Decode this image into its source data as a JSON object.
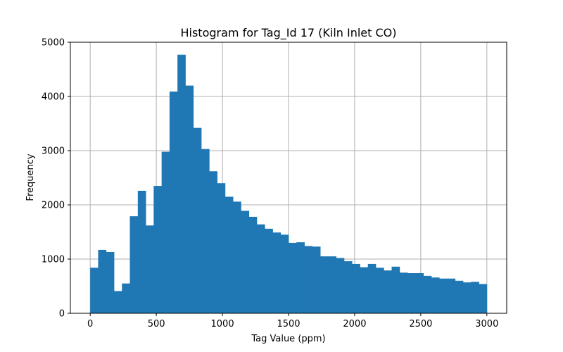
{
  "chart_data": {
    "type": "bar",
    "title": "Histogram for Tag_Id 17 (Kiln Inlet CO)",
    "xlabel": "Tag Value (ppm)",
    "ylabel": "Frequency",
    "xlim": [
      -150,
      3150
    ],
    "ylim": [
      0,
      5000
    ],
    "bin_start": 0,
    "bin_width": 60,
    "xticks": [
      0,
      500,
      1000,
      1500,
      2000,
      2500,
      3000
    ],
    "yticks": [
      0,
      1000,
      2000,
      3000,
      4000,
      5000
    ],
    "grid": true,
    "bar_color": "#1f77b4",
    "values": [
      840,
      1170,
      1130,
      410,
      550,
      1790,
      2260,
      1620,
      2350,
      2980,
      4090,
      4770,
      4200,
      3420,
      3030,
      2620,
      2400,
      2150,
      2060,
      1890,
      1780,
      1640,
      1560,
      1490,
      1450,
      1300,
      1310,
      1240,
      1230,
      1050,
      1050,
      1020,
      960,
      910,
      850,
      910,
      840,
      790,
      860,
      750,
      740,
      740,
      690,
      660,
      640,
      640,
      600,
      570,
      580,
      540
    ]
  }
}
